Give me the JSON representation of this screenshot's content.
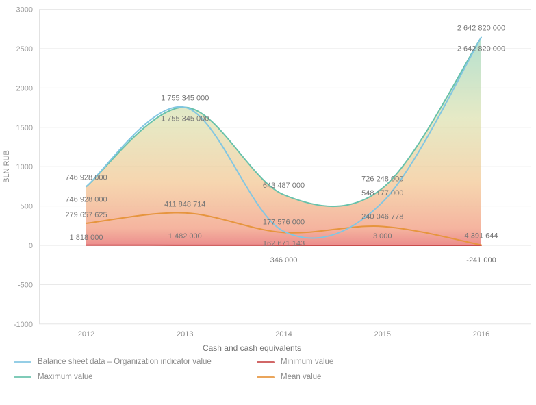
{
  "chart_data": {
    "type": "area-line",
    "title": "Cash and cash equivalents",
    "ylabel": "BLN RUB",
    "ylim": [
      -1000,
      3000
    ],
    "y_ticks": [
      3000,
      2500,
      2000,
      1500,
      1000,
      500,
      0,
      -500,
      -1000
    ],
    "x": [
      2012,
      2013,
      2014,
      2015,
      2016
    ],
    "grid": true,
    "legend_position": "bottom",
    "value_axis_unit": "millions plotted against BLN RUB axis",
    "series": [
      {
        "name": "Balance sheet data – Organization indicator value",
        "color": "#82c6e2",
        "values": [
          746928000,
          1755345000,
          177576000,
          548177000,
          2642820000
        ],
        "labels": [
          "746 928 000",
          "1 755 345 000",
          "177 576 000",
          "548 177 000",
          "2 642 820 000"
        ]
      },
      {
        "name": "Maximum value",
        "color": "#68c2ab",
        "values": [
          746928000,
          1755345000,
          643487000,
          726248000,
          2642820000
        ],
        "labels": [
          "746 928 000",
          "1 755 345 000",
          "643 487 000",
          "726 248 000",
          "2 642 820 000"
        ]
      },
      {
        "name": "Minimum value",
        "color": "#c94c4c",
        "values": [
          1818000,
          1482000,
          346000,
          3000,
          -241000
        ],
        "labels": [
          "1 818 000",
          "1 482 000",
          "346 000",
          "3 000",
          "-241 000"
        ]
      },
      {
        "name": "Mean value",
        "color": "#e6953e",
        "values": [
          279657625,
          411848714,
          162671143,
          240046778,
          4391644
        ],
        "labels": [
          "279 657 625",
          "411 848 714",
          "162 671 143",
          "240 046 778",
          "4 391 644"
        ]
      }
    ]
  },
  "legend": {
    "items": [
      {
        "label": "Balance sheet data – Organization indicator value",
        "color": "#82c6e2"
      },
      {
        "label": "Minimum value",
        "color": "#c94c4c"
      },
      {
        "label": "Maximum value",
        "color": "#68c2ab"
      },
      {
        "label": "Mean value",
        "color": "#e6953e"
      }
    ]
  }
}
